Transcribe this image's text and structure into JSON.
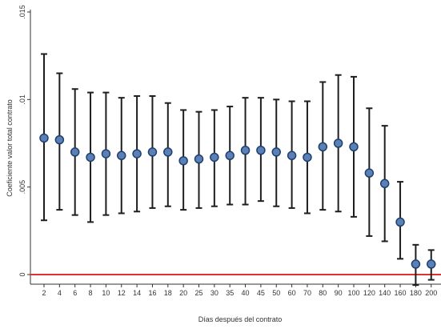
{
  "chart_data": {
    "type": "scatter",
    "subtype": "errorbar",
    "title": "",
    "xlabel": "Días después del contrato",
    "ylabel": "Coeficiente valor total contrato",
    "ylim": [
      0,
      0.015
    ],
    "yticks": [
      {
        "value": 0,
        "label": "0"
      },
      {
        "value": 0.005,
        "label": ".005"
      },
      {
        "value": 0.01,
        "label": ".01"
      },
      {
        "value": 0.015,
        "label": ".015"
      }
    ],
    "grid": false,
    "reference_line": {
      "y": 0,
      "color": "#e03030"
    },
    "marker_color": "#5b80b5",
    "errorbar_color": "#1e1e1e",
    "categories": [
      "2",
      "4",
      "6",
      "8",
      "10",
      "12",
      "14",
      "16",
      "18",
      "20",
      "25",
      "30",
      "35",
      "40",
      "45",
      "50",
      "60",
      "70",
      "80",
      "90",
      "100",
      "120",
      "140",
      "160",
      "180",
      "200"
    ],
    "points": [
      {
        "x": "2",
        "estimate": 0.0078,
        "lower": 0.0031,
        "upper": 0.0126
      },
      {
        "x": "4",
        "estimate": 0.0077,
        "lower": 0.0037,
        "upper": 0.0115
      },
      {
        "x": "6",
        "estimate": 0.007,
        "lower": 0.0034,
        "upper": 0.0106
      },
      {
        "x": "8",
        "estimate": 0.0067,
        "lower": 0.003,
        "upper": 0.0104
      },
      {
        "x": "10",
        "estimate": 0.0069,
        "lower": 0.0034,
        "upper": 0.0104
      },
      {
        "x": "12",
        "estimate": 0.0068,
        "lower": 0.0035,
        "upper": 0.0101
      },
      {
        "x": "14",
        "estimate": 0.0069,
        "lower": 0.0036,
        "upper": 0.0102
      },
      {
        "x": "16",
        "estimate": 0.007,
        "lower": 0.0038,
        "upper": 0.0102
      },
      {
        "x": "18",
        "estimate": 0.007,
        "lower": 0.0039,
        "upper": 0.0098
      },
      {
        "x": "20",
        "estimate": 0.0065,
        "lower": 0.0037,
        "upper": 0.0094
      },
      {
        "x": "25",
        "estimate": 0.0066,
        "lower": 0.0038,
        "upper": 0.0093
      },
      {
        "x": "30",
        "estimate": 0.0067,
        "lower": 0.0039,
        "upper": 0.0094
      },
      {
        "x": "35",
        "estimate": 0.0068,
        "lower": 0.004,
        "upper": 0.0096
      },
      {
        "x": "40",
        "estimate": 0.0071,
        "lower": 0.004,
        "upper": 0.0101
      },
      {
        "x": "45",
        "estimate": 0.0071,
        "lower": 0.0042,
        "upper": 0.0101
      },
      {
        "x": "50",
        "estimate": 0.007,
        "lower": 0.0039,
        "upper": 0.01
      },
      {
        "x": "60",
        "estimate": 0.0068,
        "lower": 0.0038,
        "upper": 0.0099
      },
      {
        "x": "70",
        "estimate": 0.0067,
        "lower": 0.0035,
        "upper": 0.0099
      },
      {
        "x": "80",
        "estimate": 0.0073,
        "lower": 0.0037,
        "upper": 0.011
      },
      {
        "x": "90",
        "estimate": 0.0075,
        "lower": 0.0036,
        "upper": 0.0114
      },
      {
        "x": "100",
        "estimate": 0.0073,
        "lower": 0.0033,
        "upper": 0.0113
      },
      {
        "x": "120",
        "estimate": 0.0058,
        "lower": 0.0022,
        "upper": 0.0095
      },
      {
        "x": "140",
        "estimate": 0.0052,
        "lower": 0.0019,
        "upper": 0.0085
      },
      {
        "x": "160",
        "estimate": 0.003,
        "lower": 0.0009,
        "upper": 0.0053
      },
      {
        "x": "180",
        "estimate": 0.0006,
        "lower": -0.0006,
        "upper": 0.0017
      },
      {
        "x": "200",
        "estimate": 0.0006,
        "lower": -0.0003,
        "upper": 0.0014
      }
    ]
  }
}
